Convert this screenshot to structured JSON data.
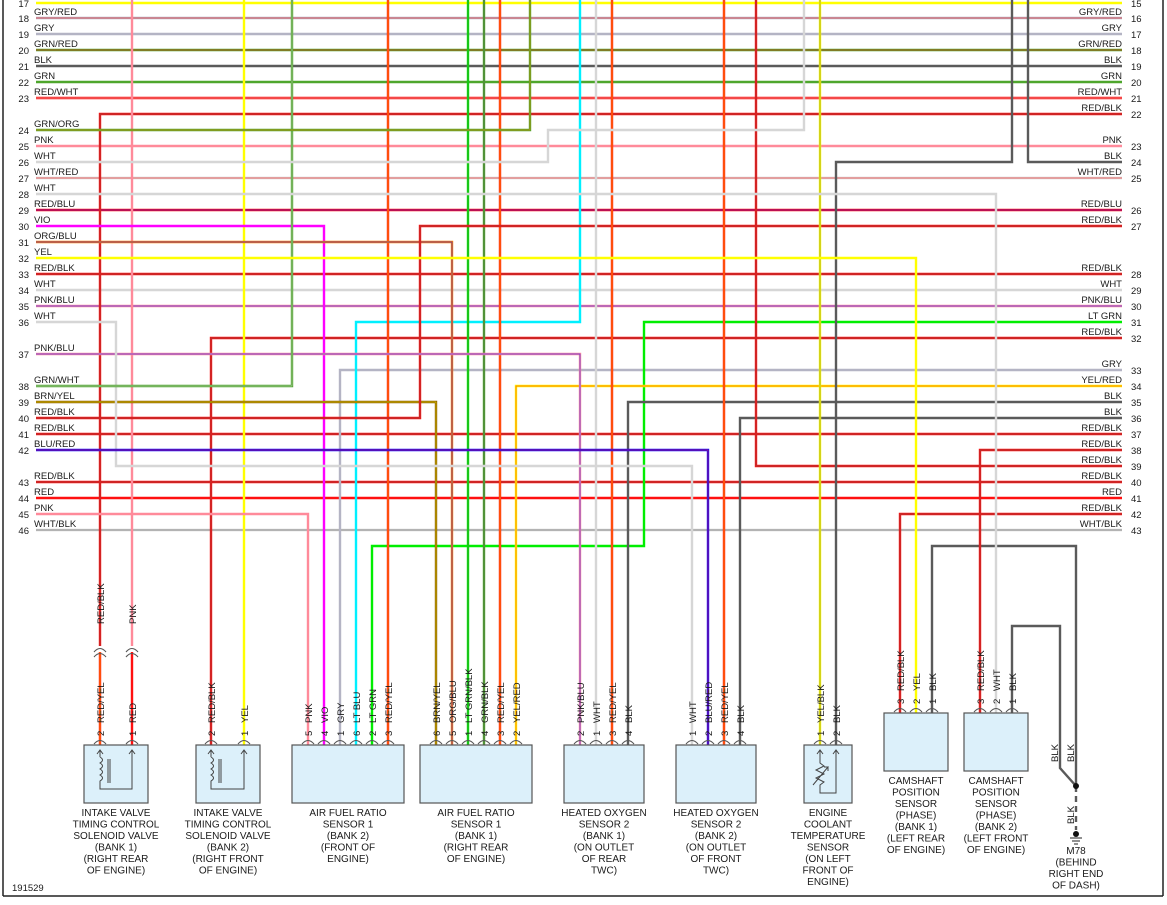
{
  "diagram_id": "191529",
  "wire_colors": {
    "RED": "#ff1010",
    "BLK": "#5a5a5a",
    "GRN": "#4ea62c",
    "LT GRN": "#00ee00",
    "YEL": "#ffff00",
    "PNK": "#ff8a9a",
    "WHT": "#d6d6d6",
    "GRY": "#b4b4c4",
    "BLU": "#1010ff",
    "LT BLU": "#00f0ff",
    "VIO": "#ff00ff",
    "ORG": "#ff8000",
    "BRN": "#8b5a00"
  },
  "left_connector": [
    {
      "pin": "17",
      "wire": ""
    },
    {
      "pin": "18",
      "wire": "GRY/RED"
    },
    {
      "pin": "19",
      "wire": "GRY"
    },
    {
      "pin": "20",
      "wire": "GRN/RED"
    },
    {
      "pin": "21",
      "wire": "BLK"
    },
    {
      "pin": "22",
      "wire": "GRN"
    },
    {
      "pin": "23",
      "wire": "RED/WHT"
    },
    {
      "pin": "24",
      "wire": "GRN/ORG"
    },
    {
      "pin": "25",
      "wire": "PNK"
    },
    {
      "pin": "26",
      "wire": "WHT"
    },
    {
      "pin": "27",
      "wire": "WHT/RED"
    },
    {
      "pin": "28",
      "wire": "WHT"
    },
    {
      "pin": "29",
      "wire": "RED/BLU"
    },
    {
      "pin": "30",
      "wire": "VIO"
    },
    {
      "pin": "31",
      "wire": "ORG/BLU"
    },
    {
      "pin": "32",
      "wire": "YEL"
    },
    {
      "pin": "33",
      "wire": "RED/BLK"
    },
    {
      "pin": "34",
      "wire": "WHT"
    },
    {
      "pin": "35",
      "wire": "PNK/BLU"
    },
    {
      "pin": "36",
      "wire": "WHT"
    },
    {
      "pin": "37",
      "wire": "PNK/BLU"
    },
    {
      "pin": "38",
      "wire": "GRN/WHT"
    },
    {
      "pin": "39",
      "wire": "BRN/YEL"
    },
    {
      "pin": "40",
      "wire": "RED/BLK"
    },
    {
      "pin": "41",
      "wire": "RED/BLK"
    },
    {
      "pin": "42",
      "wire": "BLU/RED"
    },
    {
      "pin": "43",
      "wire": "RED/BLK"
    },
    {
      "pin": "44",
      "wire": "RED"
    },
    {
      "pin": "45",
      "wire": "PNK"
    },
    {
      "pin": "46",
      "wire": "WHT/BLK"
    }
  ],
  "right_connector": [
    {
      "pin": "15",
      "wire": ""
    },
    {
      "pin": "16",
      "wire": "GRY/RED"
    },
    {
      "pin": "17",
      "wire": "GRY"
    },
    {
      "pin": "18",
      "wire": "GRN/RED"
    },
    {
      "pin": "19",
      "wire": "BLK"
    },
    {
      "pin": "20",
      "wire": "GRN"
    },
    {
      "pin": "21",
      "wire": "RED/WHT"
    },
    {
      "pin": "22",
      "wire": "RED/BLK"
    },
    {
      "pin": "23",
      "wire": "PNK"
    },
    {
      "pin": "24",
      "wire": "BLK"
    },
    {
      "pin": "25",
      "wire": "WHT/RED"
    },
    {
      "pin": "26",
      "wire": "RED/BLU"
    },
    {
      "pin": "27",
      "wire": "RED/BLK"
    },
    {
      "pin": "28",
      "wire": "RED/BLK"
    },
    {
      "pin": "29",
      "wire": "WHT"
    },
    {
      "pin": "30",
      "wire": "PNK/BLU"
    },
    {
      "pin": "31",
      "wire": "LT GRN"
    },
    {
      "pin": "32",
      "wire": "RED/BLK"
    },
    {
      "pin": "33",
      "wire": "GRY"
    },
    {
      "pin": "34",
      "wire": "YEL/RED"
    },
    {
      "pin": "35",
      "wire": "BLK"
    },
    {
      "pin": "36",
      "wire": "BLK"
    },
    {
      "pin": "37",
      "wire": "RED/BLK"
    },
    {
      "pin": "38",
      "wire": "RED/BLK"
    },
    {
      "pin": "39",
      "wire": "RED/BLK"
    },
    {
      "pin": "40",
      "wire": "RED/BLK"
    },
    {
      "pin": "41",
      "wire": "RED"
    },
    {
      "pin": "42",
      "wire": "RED/BLK"
    },
    {
      "pin": "43",
      "wire": "WHT/BLK"
    }
  ],
  "components": [
    {
      "id": "ivt-bank1",
      "symbol": "solenoid",
      "name": [
        "INTAKE VALVE",
        "TIMING CONTROL",
        "SOLENOID VALVE",
        "(BANK 1)",
        "(RIGHT REAR",
        "OF ENGINE)"
      ],
      "pins": [
        {
          "num": "2",
          "wire": "RED/YEL",
          "harness_wire": "RED/BLK"
        },
        {
          "num": "1",
          "wire": "RED",
          "harness_wire": "PNK"
        }
      ]
    },
    {
      "id": "ivt-bank2",
      "symbol": "solenoid",
      "name": [
        "INTAKE VALVE",
        "TIMING CONTROL",
        "SOLENOID VALVE",
        "(BANK 2)",
        "(RIGHT FRONT",
        "OF ENGINE)"
      ],
      "pins": [
        {
          "num": "2",
          "wire": "RED/BLK"
        },
        {
          "num": "1",
          "wire": "YEL"
        }
      ]
    },
    {
      "id": "afr-bank2",
      "symbol": "box",
      "name": [
        "AIR FUEL RATIO",
        "SENSOR 1",
        "(BANK 2)",
        "(FRONT OF",
        "ENGINE)"
      ],
      "pins": [
        {
          "num": "5",
          "wire": "PNK"
        },
        {
          "num": "4",
          "wire": "VIO"
        },
        {
          "num": "1",
          "wire": "GRY"
        },
        {
          "num": "6",
          "wire": "LT BLU"
        },
        {
          "num": "2",
          "wire": "LT GRN"
        },
        {
          "num": "3",
          "wire": "RED/YEL"
        }
      ]
    },
    {
      "id": "afr-bank1",
      "symbol": "box",
      "name": [
        "AIR FUEL RATIO",
        "SENSOR 1",
        "(BANK 1)",
        "(RIGHT REAR",
        "OF ENGINE)"
      ],
      "pins": [
        {
          "num": "6",
          "wire": "BRN/YEL"
        },
        {
          "num": "5",
          "wire": "ORG/BLU"
        },
        {
          "num": "1",
          "wire": "LT GRN/BLK"
        },
        {
          "num": "4",
          "wire": "GRN/BLK"
        },
        {
          "num": "3",
          "wire": "RED/YEL"
        },
        {
          "num": "2",
          "wire": "YEL/RED"
        }
      ]
    },
    {
      "id": "ho2s-bank1",
      "symbol": "box",
      "name": [
        "HEATED OXYGEN",
        "SENSOR 2",
        "(BANK 1)",
        "(ON OUTLET",
        "OF REAR",
        "TWC)"
      ],
      "pins": [
        {
          "num": "2",
          "wire": "PNK/BLU"
        },
        {
          "num": "1",
          "wire": "WHT"
        },
        {
          "num": "3",
          "wire": "RED/YEL"
        },
        {
          "num": "4",
          "wire": "BLK"
        }
      ]
    },
    {
      "id": "ho2s-bank2",
      "symbol": "box",
      "name": [
        "HEATED OXYGEN",
        "SENSOR 2",
        "(BANK 2)",
        "(ON OUTLET",
        "OF FRONT",
        "TWC)"
      ],
      "pins": [
        {
          "num": "1",
          "wire": "WHT"
        },
        {
          "num": "2",
          "wire": "BLU/RED"
        },
        {
          "num": "3",
          "wire": "RED/YEL"
        },
        {
          "num": "4",
          "wire": "BLK"
        }
      ]
    },
    {
      "id": "ect-sensor",
      "symbol": "thermistor",
      "name": [
        "ENGINE",
        "COOLANT",
        "TEMPERATURE",
        "SENSOR",
        "(ON LEFT",
        "FRONT OF",
        "ENGINE)"
      ],
      "pins": [
        {
          "num": "1",
          "wire": "YEL/BLK"
        },
        {
          "num": "2",
          "wire": "BLK"
        }
      ]
    },
    {
      "id": "cmp-bank1",
      "symbol": "box",
      "name": [
        "CAMSHAFT",
        "POSITION",
        "SENSOR",
        "(PHASE)",
        "(BANK 1)",
        "(LEFT REAR",
        "OF ENGINE)"
      ],
      "pins": [
        {
          "num": "3",
          "wire": "RED/BLK"
        },
        {
          "num": "2",
          "wire": "YEL"
        },
        {
          "num": "1",
          "wire": "BLK"
        }
      ]
    },
    {
      "id": "cmp-bank2",
      "symbol": "box",
      "name": [
        "CAMSHAFT",
        "POSITION",
        "SENSOR",
        "(PHASE)",
        "(BANK 2)",
        "(LEFT FRONT",
        "OF ENGINE)"
      ],
      "pins": [
        {
          "num": "3",
          "wire": "RED/BLK"
        },
        {
          "num": "2",
          "wire": "WHT"
        },
        {
          "num": "1",
          "wire": "BLK"
        }
      ]
    }
  ],
  "ground": {
    "id": "M78",
    "name": [
      "M78",
      "(BEHIND",
      "RIGHT END",
      "OF DASH)"
    ],
    "wires": [
      "BLK",
      "BLK",
      "BLK"
    ]
  }
}
